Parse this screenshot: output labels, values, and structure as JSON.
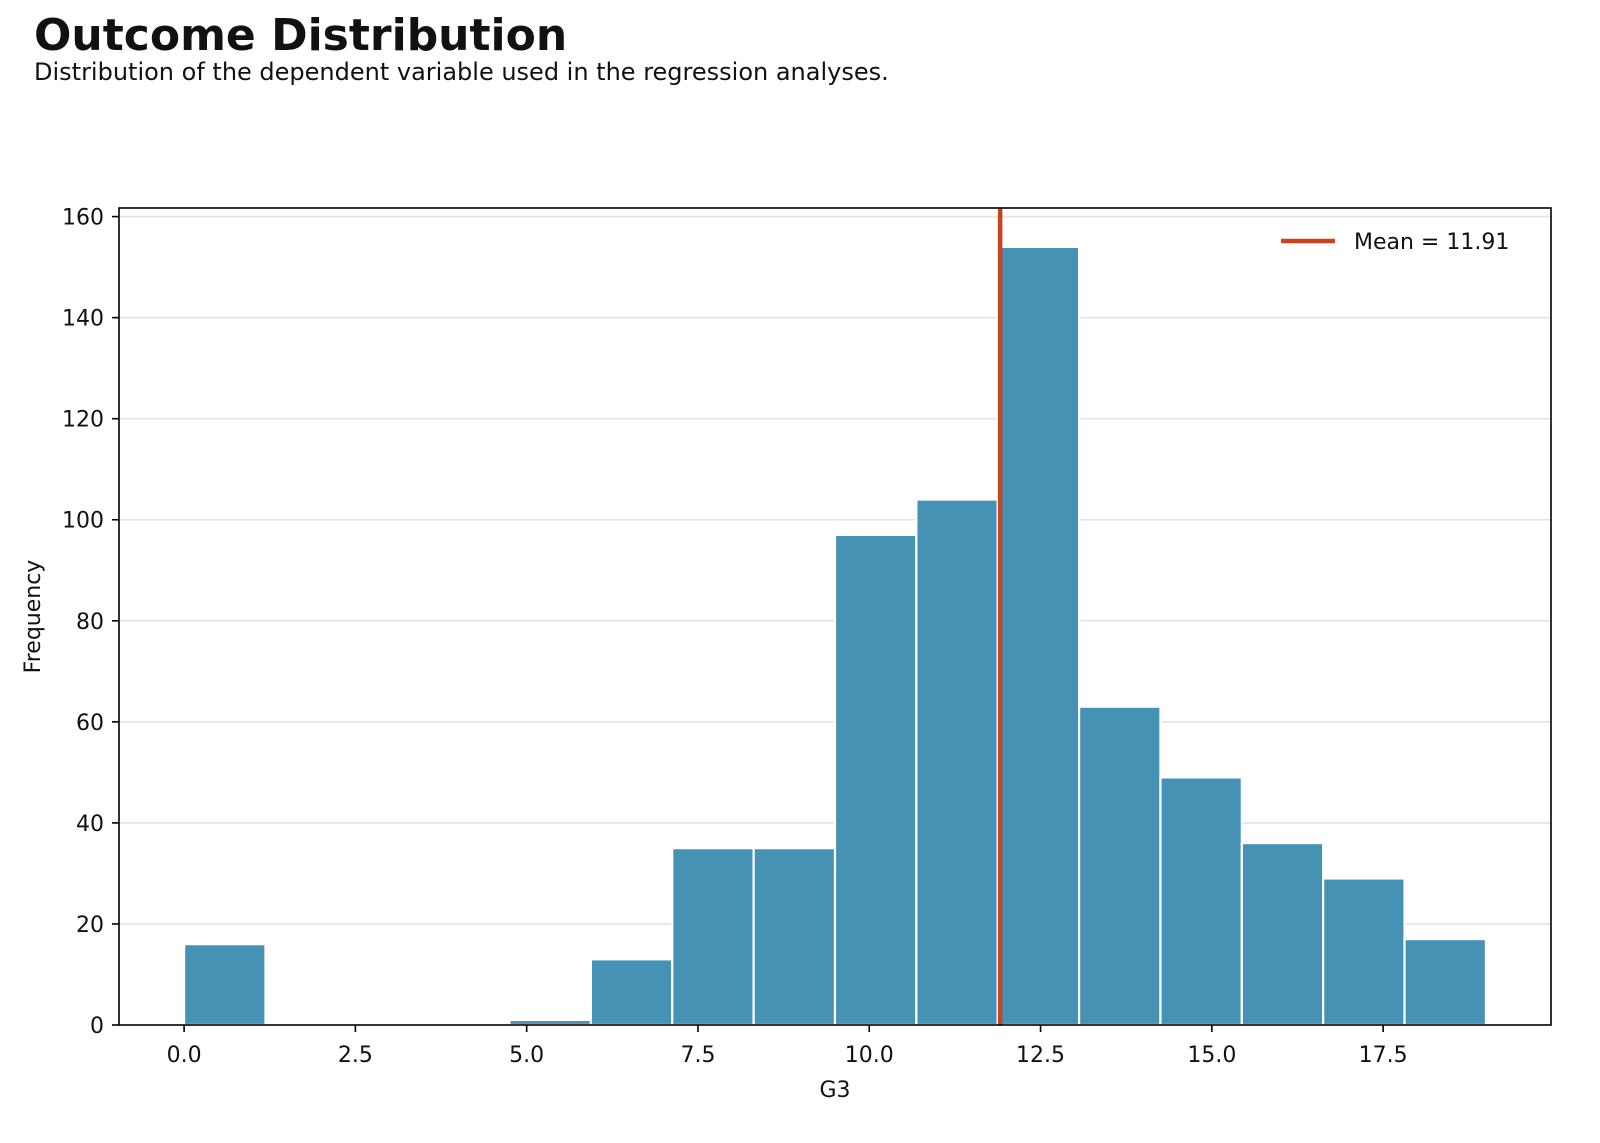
{
  "figure": {
    "title": "Outcome Distribution",
    "subtitle": "Distribution of the dependent variable used in the regression analyses."
  },
  "chart_data": {
    "type": "bar",
    "xlabel": "G3",
    "ylabel": "Frequency",
    "xlim": [
      -0.95,
      19.95
    ],
    "ylim": [
      0,
      161.7
    ],
    "xticks": [
      0.0,
      2.5,
      5.0,
      7.5,
      10.0,
      12.5,
      15.0,
      17.5
    ],
    "xtick_labels": [
      "0.0",
      "2.5",
      "5.0",
      "7.5",
      "10.0",
      "12.5",
      "15.0",
      "17.5"
    ],
    "yticks": [
      0,
      20,
      40,
      60,
      80,
      100,
      120,
      140,
      160
    ],
    "ytick_labels": [
      "0",
      "20",
      "40",
      "60",
      "80",
      "100",
      "120",
      "140",
      "160"
    ],
    "grid": "horizontal",
    "bin_edges": [
      0.0,
      1.1875,
      2.375,
      3.5625,
      4.75,
      5.9375,
      7.125,
      8.3125,
      9.5,
      10.6875,
      11.875,
      13.0625,
      14.25,
      15.4375,
      16.625,
      17.8125,
      19.0
    ],
    "counts": [
      16,
      0,
      0,
      0,
      1,
      13,
      35,
      35,
      97,
      104,
      154,
      63,
      49,
      36,
      29,
      17
    ],
    "bar_color": "#4592b5",
    "bar_edge_color": "#ffffff",
    "mean": {
      "value": 11.91,
      "label": "Mean = 11.91",
      "color": "#c8431f"
    },
    "legend_position": "upper right"
  }
}
